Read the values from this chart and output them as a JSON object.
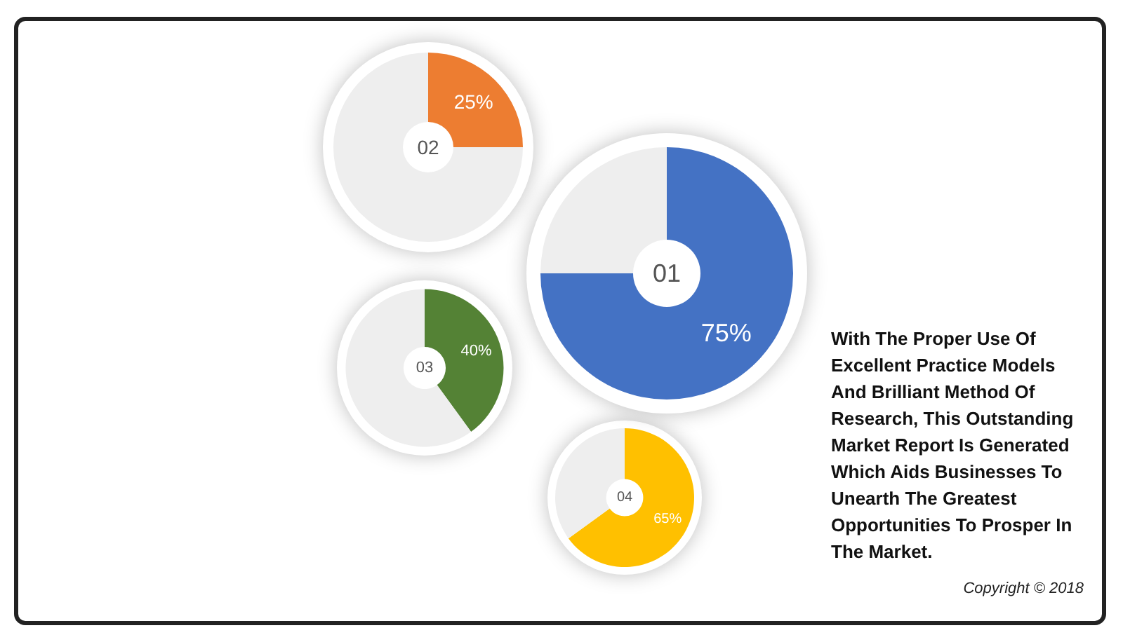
{
  "chart_data": [
    {
      "type": "donut",
      "title": "01",
      "categories": [
        null,
        null
      ],
      "values": [
        75,
        25
      ],
      "colors": [
        "#4472c4",
        "#eeeeee"
      ],
      "value_labels": [
        "75%",
        null
      ]
    },
    {
      "type": "donut",
      "title": "02",
      "categories": [
        null,
        null
      ],
      "values": [
        25,
        75
      ],
      "colors": [
        "#ed7d31",
        "#eeeeee"
      ],
      "value_labels": [
        "25%",
        null
      ]
    },
    {
      "type": "donut",
      "title": "03",
      "categories": [
        null,
        null
      ],
      "values": [
        40,
        60
      ],
      "colors": [
        "#548235",
        "#eeeeee"
      ],
      "value_labels": [
        "40%",
        null
      ]
    },
    {
      "type": "donut",
      "title": "04",
      "categories": [
        null,
        null
      ],
      "values": [
        65,
        35
      ],
      "colors": [
        "#ffc000",
        "#eeeeee"
      ],
      "value_labels": [
        "65%",
        null
      ]
    },
    {
      "type": "other",
      "annotations": [
        "With The Proper Use Of Excellent Practice Models And Brilliant Method Of Research, This Outstanding Market Report Is Generated Which Aids Businesses To Unearth The Greatest Opportunities To Prosper In The Market.",
        "Copyright © 2018"
      ]
    }
  ]
}
